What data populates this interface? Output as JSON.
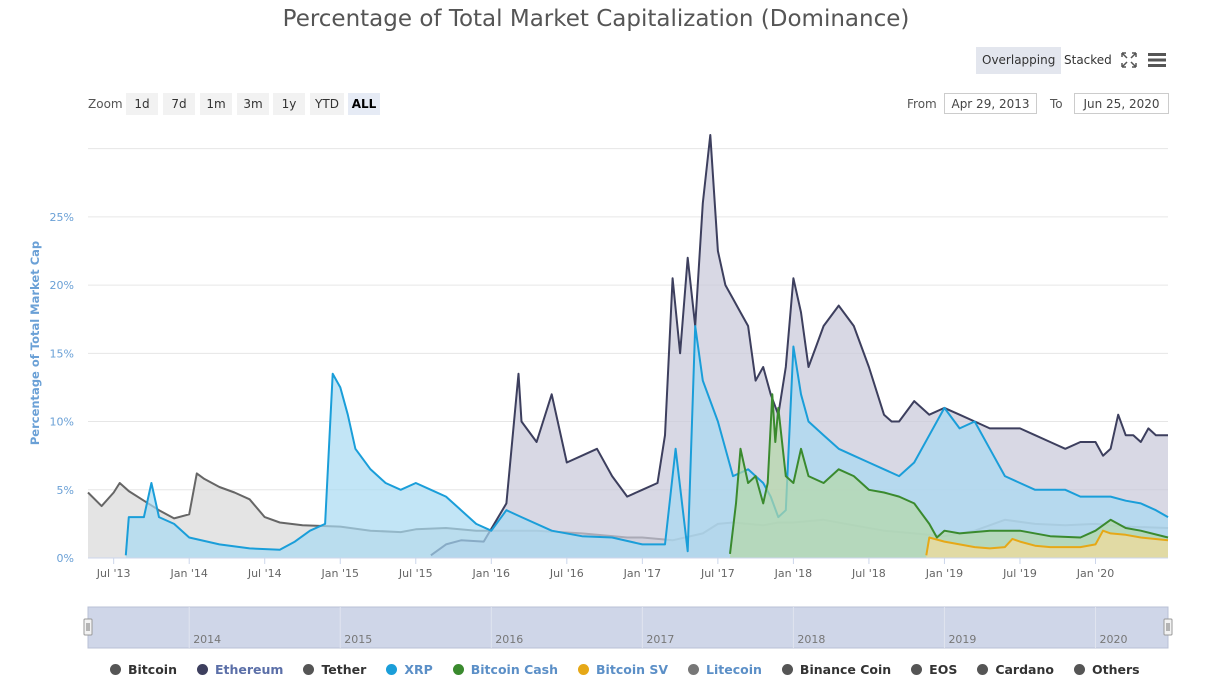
{
  "chart_data": {
    "type": "area",
    "title": "Percentage of Total Market Capitalization (Dominance)",
    "ylabel": "Percentage of Total Market Cap",
    "xlabel": "",
    "ylim": [
      0,
      31
    ],
    "yticks": [
      0,
      5,
      10,
      15,
      20,
      25
    ],
    "ytick_labels": [
      "0%",
      "5%",
      "10%",
      "15%",
      "20%",
      "25%"
    ],
    "xlim": [
      2013.33,
      2020.48
    ],
    "xticks": [
      {
        "x": 2013.5,
        "label": "Jul '13"
      },
      {
        "x": 2014.0,
        "label": "Jan '14"
      },
      {
        "x": 2014.5,
        "label": "Jul '14"
      },
      {
        "x": 2015.0,
        "label": "Jan '15"
      },
      {
        "x": 2015.5,
        "label": "Jul '15"
      },
      {
        "x": 2016.0,
        "label": "Jan '16"
      },
      {
        "x": 2016.5,
        "label": "Jul '16"
      },
      {
        "x": 2017.0,
        "label": "Jan '17"
      },
      {
        "x": 2017.5,
        "label": "Jul '17"
      },
      {
        "x": 2018.0,
        "label": "Jan '18"
      },
      {
        "x": 2018.5,
        "label": "Jul '18"
      },
      {
        "x": 2019.0,
        "label": "Jan '19"
      },
      {
        "x": 2019.5,
        "label": "Jul '19"
      },
      {
        "x": 2020.0,
        "label": "Jan '20"
      }
    ],
    "grid": true,
    "legend_position": "bottom",
    "series": [
      {
        "name": "Others",
        "color": "#666666",
        "fill": "#d8d8d8",
        "visible": true,
        "x": [
          2013.33,
          2013.42,
          2013.5,
          2013.54,
          2013.6,
          2013.7,
          2013.8,
          2013.9,
          2014.0,
          2014.05,
          2014.1,
          2014.2,
          2014.3,
          2014.4,
          2014.5,
          2014.6,
          2014.75,
          2015.0,
          2015.2,
          2015.4,
          2015.5,
          2015.7,
          2015.9,
          2016.0,
          2016.3,
          2016.6,
          2016.9,
          2017.0,
          2017.1,
          2017.2,
          2017.4,
          2017.5,
          2017.6,
          2017.7,
          2017.8,
          2017.9,
          2018.0,
          2018.2,
          2018.4,
          2018.6,
          2018.8,
          2019.0,
          2019.2,
          2019.4,
          2019.6,
          2019.8,
          2020.0,
          2020.2,
          2020.48
        ],
        "y": [
          4.8,
          3.8,
          4.8,
          5.5,
          4.9,
          4.2,
          3.5,
          2.9,
          3.2,
          6.2,
          5.8,
          5.2,
          4.8,
          4.3,
          3.0,
          2.6,
          2.4,
          2.3,
          2.0,
          1.9,
          2.1,
          2.2,
          2.0,
          2.0,
          2.0,
          1.8,
          1.5,
          1.5,
          1.4,
          1.3,
          1.8,
          2.5,
          2.6,
          2.5,
          2.4,
          2.6,
          2.6,
          2.8,
          2.4,
          2.0,
          1.8,
          1.6,
          2.0,
          2.8,
          2.5,
          2.4,
          2.5,
          2.3,
          2.2
        ]
      },
      {
        "name": "Ethereum",
        "color": "#3d3f5e",
        "fill": "#c8c8d8",
        "visible": true,
        "x": [
          2015.6,
          2015.7,
          2015.8,
          2015.95,
          2016.1,
          2016.18,
          2016.2,
          2016.3,
          2016.4,
          2016.5,
          2016.6,
          2016.7,
          2016.8,
          2016.9,
          2017.0,
          2017.1,
          2017.15,
          2017.2,
          2017.25,
          2017.3,
          2017.35,
          2017.4,
          2017.45,
          2017.5,
          2017.55,
          2017.6,
          2017.65,
          2017.7,
          2017.75,
          2017.8,
          2017.85,
          2017.9,
          2017.95,
          2018.0,
          2018.05,
          2018.1,
          2018.15,
          2018.2,
          2018.3,
          2018.4,
          2018.5,
          2018.6,
          2018.65,
          2018.7,
          2018.8,
          2018.9,
          2019.0,
          2019.1,
          2019.2,
          2019.3,
          2019.4,
          2019.5,
          2019.6,
          2019.7,
          2019.8,
          2019.9,
          2020.0,
          2020.05,
          2020.1,
          2020.15,
          2020.2,
          2020.25,
          2020.3,
          2020.35,
          2020.4,
          2020.48
        ],
        "y": [
          0.2,
          1.0,
          1.3,
          1.2,
          4.0,
          13.5,
          10.0,
          8.5,
          12.0,
          7.0,
          7.5,
          8.0,
          6.0,
          4.5,
          5.0,
          5.5,
          9.0,
          20.5,
          15.0,
          22.0,
          17.0,
          26.0,
          31.0,
          22.5,
          20.0,
          19.0,
          18.0,
          17.0,
          13.0,
          14.0,
          12.0,
          10.5,
          14.0,
          20.5,
          18.0,
          14.0,
          15.5,
          17.0,
          18.5,
          17.0,
          14.0,
          10.5,
          10.0,
          10.0,
          11.5,
          10.5,
          11.0,
          10.5,
          10.0,
          9.5,
          9.5,
          9.5,
          9.0,
          8.5,
          8.0,
          8.5,
          8.5,
          7.5,
          8.0,
          10.5,
          9.0,
          9.0,
          8.5,
          9.5,
          9.0,
          9.0
        ]
      },
      {
        "name": "XRP",
        "color": "#1a9ed9",
        "fill": "#a8daf2",
        "visible": true,
        "x": [
          2013.58,
          2013.6,
          2013.7,
          2013.75,
          2013.8,
          2013.9,
          2014.0,
          2014.2,
          2014.4,
          2014.6,
          2014.7,
          2014.8,
          2014.9,
          2014.95,
          2015.0,
          2015.05,
          2015.1,
          2015.2,
          2015.3,
          2015.4,
          2015.5,
          2015.6,
          2015.7,
          2015.8,
          2015.9,
          2016.0,
          2016.1,
          2016.2,
          2016.4,
          2016.6,
          2016.8,
          2017.0,
          2017.15,
          2017.22,
          2017.3,
          2017.35,
          2017.4,
          2017.5,
          2017.6,
          2017.7,
          2017.8,
          2017.85,
          2017.9,
          2017.95,
          2018.0,
          2018.05,
          2018.1,
          2018.2,
          2018.3,
          2018.4,
          2018.5,
          2018.6,
          2018.7,
          2018.8,
          2018.9,
          2019.0,
          2019.1,
          2019.2,
          2019.3,
          2019.4,
          2019.5,
          2019.6,
          2019.7,
          2019.8,
          2019.9,
          2020.0,
          2020.1,
          2020.2,
          2020.3,
          2020.4,
          2020.48
        ],
        "y": [
          0.2,
          3.0,
          3.0,
          5.5,
          3.0,
          2.5,
          1.5,
          1.0,
          0.7,
          0.6,
          1.2,
          2.0,
          2.5,
          13.5,
          12.5,
          10.5,
          8.0,
          6.5,
          5.5,
          5.0,
          5.5,
          5.0,
          4.5,
          3.5,
          2.5,
          2.0,
          3.5,
          3.0,
          2.0,
          1.6,
          1.5,
          1.0,
          1.0,
          8.0,
          0.5,
          17.0,
          13.0,
          10.0,
          6.0,
          6.5,
          5.5,
          4.5,
          3.0,
          3.5,
          15.5,
          12.0,
          10.0,
          9.0,
          8.0,
          7.5,
          7.0,
          6.5,
          6.0,
          7.0,
          9.0,
          11.0,
          9.5,
          10.0,
          8.0,
          6.0,
          5.5,
          5.0,
          5.0,
          5.0,
          4.5,
          4.5,
          4.5,
          4.2,
          4.0,
          3.5,
          3.0
        ]
      },
      {
        "name": "Bitcoin Cash",
        "color": "#3a8a2e",
        "fill": "#b5d8a8",
        "visible": true,
        "x": [
          2017.58,
          2017.62,
          2017.65,
          2017.7,
          2017.75,
          2017.8,
          2017.83,
          2017.86,
          2017.88,
          2017.9,
          2017.95,
          2018.0,
          2018.05,
          2018.1,
          2018.2,
          2018.3,
          2018.4,
          2018.5,
          2018.6,
          2018.7,
          2018.8,
          2018.9,
          2018.95,
          2019.0,
          2019.1,
          2019.3,
          2019.5,
          2019.7,
          2019.9,
          2020.0,
          2020.1,
          2020.2,
          2020.3,
          2020.48
        ],
        "y": [
          0.3,
          4.0,
          8.0,
          5.5,
          6.0,
          4.0,
          5.5,
          12.0,
          8.5,
          11.0,
          6.0,
          5.5,
          8.0,
          6.0,
          5.5,
          6.5,
          6.0,
          5.0,
          4.8,
          4.5,
          4.0,
          2.5,
          1.5,
          2.0,
          1.8,
          2.0,
          2.0,
          1.6,
          1.5,
          2.0,
          2.8,
          2.2,
          2.0,
          1.5
        ]
      },
      {
        "name": "Bitcoin SV",
        "color": "#e6a817",
        "fill": "#f3dc9a",
        "visible": true,
        "x": [
          2018.88,
          2018.9,
          2019.0,
          2019.1,
          2019.2,
          2019.3,
          2019.4,
          2019.45,
          2019.5,
          2019.6,
          2019.7,
          2019.8,
          2019.9,
          2020.0,
          2020.05,
          2020.1,
          2020.2,
          2020.3,
          2020.48
        ],
        "y": [
          0.2,
          1.5,
          1.2,
          1.0,
          0.8,
          0.7,
          0.8,
          1.4,
          1.2,
          0.9,
          0.8,
          0.8,
          0.8,
          1.0,
          2.0,
          1.8,
          1.7,
          1.5,
          1.3
        ]
      },
      {
        "name": "Bitcoin",
        "color": "#333333",
        "fill": "#cccccc",
        "visible": false,
        "x": [],
        "y": []
      },
      {
        "name": "Tether",
        "color": "#4d4d4d",
        "fill": "#cccccc",
        "visible": false,
        "x": [],
        "y": []
      },
      {
        "name": "Litecoin",
        "color": "#7a7a7a",
        "fill": "#cccccc",
        "visible": false,
        "x": [],
        "y": []
      },
      {
        "name": "Binance Coin",
        "color": "#555555",
        "fill": "#cccccc",
        "visible": false,
        "x": [],
        "y": []
      },
      {
        "name": "EOS",
        "color": "#555555",
        "fill": "#cccccc",
        "visible": false,
        "x": [],
        "y": []
      },
      {
        "name": "Cardano",
        "color": "#555555",
        "fill": "#cccccc",
        "visible": false,
        "x": [],
        "y": []
      }
    ]
  },
  "controls": {
    "overlapping_label": "Overlapping",
    "stacked_label": "Stacked",
    "zoom_label": "Zoom",
    "zoom_buttons": [
      "1d",
      "7d",
      "1m",
      "3m",
      "1y",
      "YTD",
      "ALL"
    ],
    "active_zoom": "ALL",
    "from_label": "From",
    "to_label": "To",
    "from_value": "Apr 29, 2013",
    "to_value": "Jun 25, 2020"
  },
  "navigator": {
    "year_labels": [
      {
        "x": 2014.0,
        "label": "2014"
      },
      {
        "x": 2015.0,
        "label": "2015"
      },
      {
        "x": 2016.0,
        "label": "2016"
      },
      {
        "x": 2017.0,
        "label": "2017"
      },
      {
        "x": 2018.0,
        "label": "2018"
      },
      {
        "x": 2019.0,
        "label": "2019"
      },
      {
        "x": 2020.0,
        "label": "2020"
      }
    ]
  },
  "legend": [
    {
      "label": "Bitcoin",
      "dot_color": "#555555",
      "text_color": "#333333"
    },
    {
      "label": "Ethereum",
      "dot_color": "#3d3f5e",
      "text_color": "#5b6fa8"
    },
    {
      "label": "Tether",
      "dot_color": "#555555",
      "text_color": "#333333"
    },
    {
      "label": "XRP",
      "dot_color": "#1a9ed9",
      "text_color": "#5b8fc7"
    },
    {
      "label": "Bitcoin Cash",
      "dot_color": "#3a8a2e",
      "text_color": "#5b8fc7"
    },
    {
      "label": "Bitcoin SV",
      "dot_color": "#e6a817",
      "text_color": "#5b8fc7"
    },
    {
      "label": "Litecoin",
      "dot_color": "#777777",
      "text_color": "#5b8fc7"
    },
    {
      "label": "Binance Coin",
      "dot_color": "#555555",
      "text_color": "#333333"
    },
    {
      "label": "EOS",
      "dot_color": "#555555",
      "text_color": "#333333"
    },
    {
      "label": "Cardano",
      "dot_color": "#555555",
      "text_color": "#333333"
    },
    {
      "label": "Others",
      "dot_color": "#555555",
      "text_color": "#333333"
    }
  ]
}
